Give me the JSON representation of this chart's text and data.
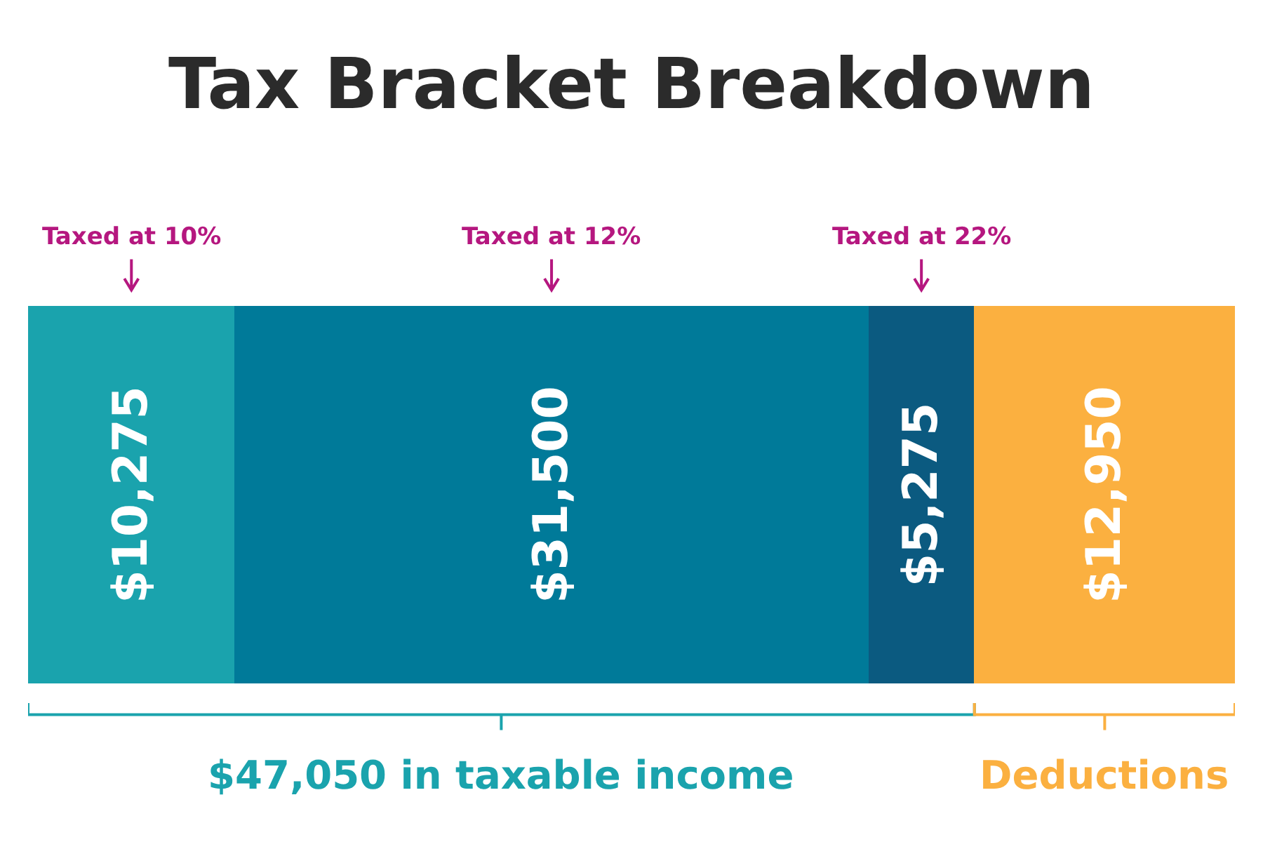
{
  "chart_data": {
    "type": "bar",
    "orientation": "horizontal",
    "stacked": true,
    "title": "Tax Bracket Breakdown",
    "categories": [
      null
    ],
    "series": [
      {
        "color": "#1aa3ad",
        "values": [
          10275
        ],
        "value_labels": [
          "$10,275"
        ]
      },
      {
        "color": "#007a99",
        "values": [
          31500
        ],
        "value_labels": [
          "$31,500"
        ]
      },
      {
        "color": "#0b5a80",
        "values": [
          5275
        ],
        "value_labels": [
          "$5,275"
        ]
      },
      {
        "color": "#fbb040",
        "values": [
          12950
        ],
        "value_labels": [
          "$12,950"
        ]
      }
    ],
    "xlim": [
      0,
      60000
    ],
    "tick_labels": false,
    "annotations": [
      "Taxed at 10%",
      "Taxed at 12%",
      "Taxed at 22%",
      "$47,050 in taxable income",
      "Deductions"
    ]
  }
}
